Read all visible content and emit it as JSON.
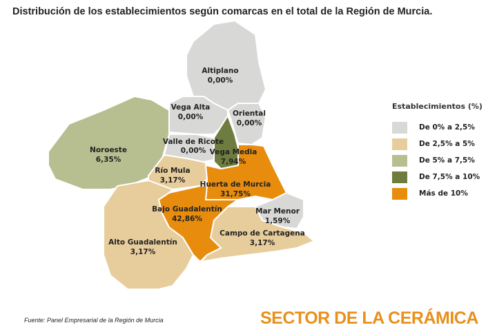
{
  "title": "Distribución de los establecimientos según comarcas en el total de la Región de Murcia.",
  "legend": {
    "title": "Establecimientos (%)",
    "items": [
      {
        "label": "De 0% a 2,5%",
        "color": "#d8d9d6"
      },
      {
        "label": "De 2,5% a 5%",
        "color": "#e8cd9c"
      },
      {
        "label": "De 5% a 7,5%",
        "color": "#b7be90"
      },
      {
        "label": "De 7,5% a 10%",
        "color": "#6e7d3f"
      },
      {
        "label": "Más de 10%",
        "color": "#e88c0e"
      }
    ]
  },
  "regions": {
    "altiplano": {
      "name": "Altiplano",
      "value": "0,00%",
      "class": 0
    },
    "vega_alta": {
      "name": "Vega Alta",
      "value": "0,00%",
      "class": 0
    },
    "oriental": {
      "name": "Oriental",
      "value": "0,00%",
      "class": 0
    },
    "noroeste": {
      "name": "Noroeste",
      "value": "6,35%",
      "class": 2
    },
    "valle_ricote": {
      "name": "Valle de Ricote",
      "value": "0,00%",
      "class": 0
    },
    "vega_media": {
      "name": "Vega Media",
      "value": "7,94%",
      "class": 3
    },
    "rio_mula": {
      "name": "Río Mula",
      "value": "3,17%",
      "class": 1
    },
    "huerta_murcia": {
      "name": "Huerta de Murcia",
      "value": "31,75%",
      "class": 4
    },
    "mar_menor": {
      "name": "Mar Menor",
      "value": "1,59%",
      "class": 0
    },
    "bajo_guadalentin": {
      "name": "Bajo Guadalentín",
      "value": "42,86%",
      "class": 4
    },
    "campo_cartagena": {
      "name": "Campo de Cartagena",
      "value": "3,17%",
      "class": 1
    },
    "alto_guadalentin": {
      "name": "Alto Guadalentín",
      "value": "3,17%",
      "class": 1
    }
  },
  "source": "Fuente: Panel Empresarial de la Región de Murcia",
  "sector": "SECTOR DE LA CERÁMICA"
}
